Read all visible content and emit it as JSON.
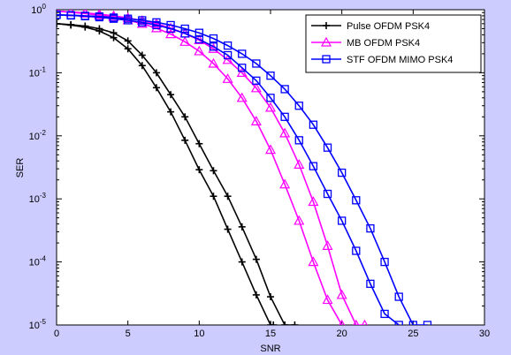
{
  "chart_data": {
    "type": "line",
    "title": "",
    "xlabel": "SNR",
    "ylabel": "SER",
    "xlim": [
      0,
      30
    ],
    "ylim": [
      1e-05,
      1
    ],
    "yscale": "log",
    "xticks": [
      0,
      5,
      10,
      15,
      20,
      25,
      30
    ],
    "yticks": [
      {
        "value": 1,
        "exp": "0"
      },
      {
        "value": 0.1,
        "exp": "-1"
      },
      {
        "value": 0.01,
        "exp": "-2"
      },
      {
        "value": 0.001,
        "exp": "-3"
      },
      {
        "value": 0.0001,
        "exp": "-4"
      },
      {
        "value": 1e-05,
        "exp": "-5"
      }
    ],
    "ytick_base": "10",
    "grid": false,
    "legend_position": "top-right",
    "series": [
      {
        "name": "Pulse OFDM PSK4",
        "color": "#000000",
        "marker": "plus",
        "x": [
          0,
          1,
          2,
          3,
          4,
          5,
          6,
          7,
          8,
          9,
          10,
          11,
          12,
          13,
          14,
          15,
          16,
          16.7
        ],
        "y": [
          0.6,
          0.58,
          0.55,
          0.5,
          0.43,
          0.32,
          0.19,
          0.1,
          0.045,
          0.02,
          0.0075,
          0.0028,
          0.0011,
          0.00036,
          0.00011,
          2.8e-05,
          1e-05,
          1e-05
        ]
      },
      {
        "name": "",
        "color": "#000000",
        "marker": "plus",
        "x": [
          0,
          1,
          2,
          3,
          4,
          5,
          6,
          7,
          8,
          9,
          10,
          11,
          12,
          13,
          14,
          15,
          15.2
        ],
        "y": [
          0.6,
          0.57,
          0.53,
          0.46,
          0.36,
          0.24,
          0.13,
          0.058,
          0.024,
          0.0085,
          0.0029,
          0.0011,
          0.00033,
          0.0001,
          3e-05,
          1e-05,
          1e-05
        ]
      },
      {
        "name": "MB OFDM PSK4",
        "color": "#ff00ff",
        "marker": "triangle",
        "x": [
          0,
          1,
          2,
          3,
          4,
          5,
          6,
          7,
          8,
          9,
          10,
          11,
          12,
          13,
          14,
          15,
          16,
          17,
          18,
          19,
          20,
          21,
          21.6
        ],
        "y": [
          0.95,
          0.92,
          0.89,
          0.85,
          0.8,
          0.74,
          0.67,
          0.6,
          0.51,
          0.42,
          0.33,
          0.24,
          0.16,
          0.1,
          0.057,
          0.028,
          0.011,
          0.0035,
          0.0009,
          0.00018,
          3e-05,
          1e-05,
          1e-05
        ]
      },
      {
        "name": "",
        "color": "#ff00ff",
        "marker": "triangle",
        "x": [
          0,
          1,
          2,
          3,
          4,
          5,
          6,
          7,
          8,
          9,
          10,
          11,
          12,
          13,
          14,
          15,
          16,
          17,
          18,
          19,
          20
        ],
        "y": [
          0.95,
          0.91,
          0.87,
          0.82,
          0.76,
          0.68,
          0.6,
          0.51,
          0.41,
          0.31,
          0.22,
          0.14,
          0.08,
          0.04,
          0.017,
          0.006,
          0.0017,
          0.00045,
          0.0001,
          2.5e-05,
          1e-05
        ]
      },
      {
        "name": "STF OFDM MIMO PSK4",
        "color": "#0000ff",
        "marker": "square",
        "x": [
          0,
          1,
          2,
          3,
          4,
          5,
          6,
          7,
          8,
          9,
          10,
          11,
          12,
          13,
          14,
          15,
          16,
          17,
          18,
          19,
          20,
          21,
          22,
          23,
          24,
          25,
          26
        ],
        "y": [
          0.83,
          0.82,
          0.8,
          0.78,
          0.75,
          0.72,
          0.68,
          0.63,
          0.57,
          0.5,
          0.43,
          0.35,
          0.27,
          0.2,
          0.14,
          0.09,
          0.055,
          0.03,
          0.015,
          0.0065,
          0.0026,
          0.00095,
          0.00034,
          0.0001,
          2.8e-05,
          1e-05,
          1e-05
        ]
      },
      {
        "name": "",
        "color": "#0000ff",
        "marker": "square",
        "x": [
          0,
          1,
          2,
          3,
          4,
          5,
          6,
          7,
          8,
          9,
          10,
          11,
          12,
          13,
          14,
          15,
          16,
          17,
          18,
          19,
          20,
          21,
          22,
          23,
          24
        ],
        "y": [
          0.83,
          0.81,
          0.79,
          0.76,
          0.72,
          0.68,
          0.63,
          0.57,
          0.5,
          0.42,
          0.34,
          0.26,
          0.19,
          0.12,
          0.075,
          0.04,
          0.02,
          0.0085,
          0.0033,
          0.0012,
          0.00045,
          0.00015,
          4.5e-05,
          1.5e-05,
          1e-05
        ]
      }
    ]
  }
}
